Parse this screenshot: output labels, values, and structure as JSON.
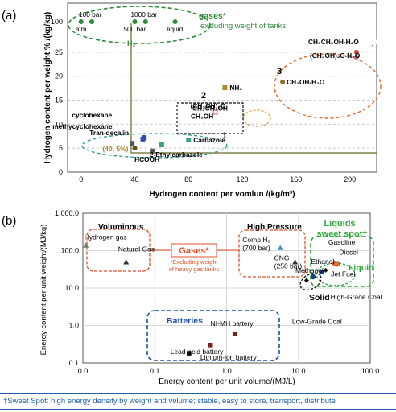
{
  "footer": "†Sweet Spot: high energy density by weight and volume; stable, easy to store, transport, distribute",
  "chart_data": [
    {
      "type": "scatter",
      "panel_label": "(a)",
      "xlabel": "Hydrogen content per vomlun /(kg/m³)",
      "ylabel": "Hydrogen content per weight % /(kg/kg)",
      "xlim": [
        -10,
        220
      ],
      "ylim": [
        0,
        30
      ],
      "x_ticks": [
        "0",
        "40",
        "80",
        "120",
        "160",
        "200"
      ],
      "y_ticks": [
        "0",
        "5",
        "10",
        "15",
        "20",
        "25",
        "100"
      ],
      "axis_break_y": 27,
      "gases_label": "gases*",
      "gases_sublabel": "excluding weight of tanks",
      "gases": [
        {
          "label": "atm",
          "x": 0,
          "y": 100
        },
        {
          "label": "100 bar",
          "x": 8,
          "y": 100
        },
        {
          "label": "500 bar",
          "x": 40,
          "y": 100
        },
        {
          "label": "1000 bar",
          "x": 48,
          "y": 100
        },
        {
          "label": "liquid",
          "x": 70,
          "y": 100
        }
      ],
      "h2_label": "H₂",
      "reference_point": {
        "label": "(40, 5%)",
        "x": 40,
        "y": 5
      },
      "compounds": [
        {
          "label": "cyclohexane",
          "x": 47,
          "y": 7.2,
          "color": "#2c4ea8"
        },
        {
          "label": "methycyclohexane",
          "x": 46,
          "y": 6.9,
          "color": "#2c4ea8"
        },
        {
          "label": "Tran-decalin",
          "x": 38,
          "y": 6.0,
          "color": "#555555"
        },
        {
          "label": "HCOOH",
          "x": 53,
          "y": 4.4,
          "color": "#555555"
        },
        {
          "label": "2-Ethylcarbazole",
          "x": 60,
          "y": 5.7,
          "color": "#3aa08a"
        },
        {
          "label": "Carbazole",
          "x": 80,
          "y": 6.7,
          "color": "#3aa08a"
        },
        {
          "label": "(CH₃OH)₂C",
          "x": 100,
          "y": 12.5,
          "color": "#e06060"
        },
        {
          "label": "CH₃CH₂OH",
          "x": 102,
          "y": 13.0,
          "color": "#e06060"
        },
        {
          "label": "CH₃OH",
          "x": 99,
          "y": 12.5,
          "color": "#e06060"
        },
        {
          "label": "NH₃",
          "x": 107,
          "y": 17.6,
          "color": "#b08a2a"
        },
        {
          "label": "CH₃CH₂OH-H₂O",
          "x": 205,
          "y": 25.0,
          "color": "#d43b2f"
        },
        {
          "label": "(CH₃OH)₂C-H₂O",
          "x": 205,
          "y": 24.0,
          "color": "#c96a9a"
        },
        {
          "label": "CH₃OH-H₂O",
          "x": 150,
          "y": 18.8,
          "color": "#9a6a2a"
        }
      ],
      "group_labels": [
        "1",
        "2",
        "3"
      ]
    },
    {
      "type": "scatter",
      "panel_label": "(b)",
      "xlabel": "Energy content per unit volume/(MJ/L)",
      "ylabel": "Energy content per unit weight/(MJ/kg)",
      "x_scale": "log",
      "y_scale": "log",
      "xlim": [
        0.01,
        100
      ],
      "ylim": [
        0.1,
        1000
      ],
      "x_ticks": [
        "0.0",
        "0.1",
        "1.0",
        "10.0",
        "100.0"
      ],
      "y_ticks": [
        "1,000.0",
        "100.0",
        "10.0",
        "1.0",
        "0.1"
      ],
      "groups": {
        "voluminous": "Voluminous",
        "high_pressure": "High Pressure",
        "sweet_spot": "Liquids\nsweet spot†",
        "gases": "Gases*",
        "gases_note": "*Excluding weight\nof heavy gas tanks",
        "liquid": "Liquid",
        "solid": "Solid",
        "batteries": "Batteries"
      },
      "points": [
        {
          "label": "Hydrogen gas",
          "x": 0.011,
          "y": 140,
          "color": "#777777"
        },
        {
          "label": "Natural Gas",
          "x": 0.04,
          "y": 50,
          "color": "#333333"
        },
        {
          "label": "Comp H₂\n(700 bar)",
          "x": 5.6,
          "y": 120,
          "color": "#4a90d9"
        },
        {
          "label": "CNG\n(250 bar)",
          "x": 9.0,
          "y": 50,
          "color": "#333333"
        },
        {
          "label": "Ethanol",
          "x": 21,
          "y": 27,
          "color": "#1a3f8a"
        },
        {
          "label": "Methanol",
          "x": 16,
          "y": 20,
          "color": "#1a3f8a"
        },
        {
          "label": "Gasoline",
          "x": 32,
          "y": 46,
          "color": "#d44a3a"
        },
        {
          "label": "Diesel",
          "x": 35,
          "y": 45,
          "color": "#2a6ac0"
        },
        {
          "label": "Jet Fuel",
          "x": 34,
          "y": 43,
          "color": "#e07030"
        },
        {
          "label": "High-Grade Coal",
          "x": 24,
          "y": 30,
          "color": "#111111"
        },
        {
          "label": "Low-Grade Coal",
          "x": 13,
          "y": 16,
          "color": "#111111"
        },
        {
          "label": "NI-MH battery",
          "x": 1.3,
          "y": 0.6,
          "color": "#7a1f1f"
        },
        {
          "label": "Lead-acid battery",
          "x": 0.6,
          "y": 0.3,
          "color": "#7a1f1f"
        },
        {
          "label": "Lithium-ion battery",
          "x": 0.3,
          "y": 0.18,
          "color": "#111111"
        }
      ]
    }
  ]
}
